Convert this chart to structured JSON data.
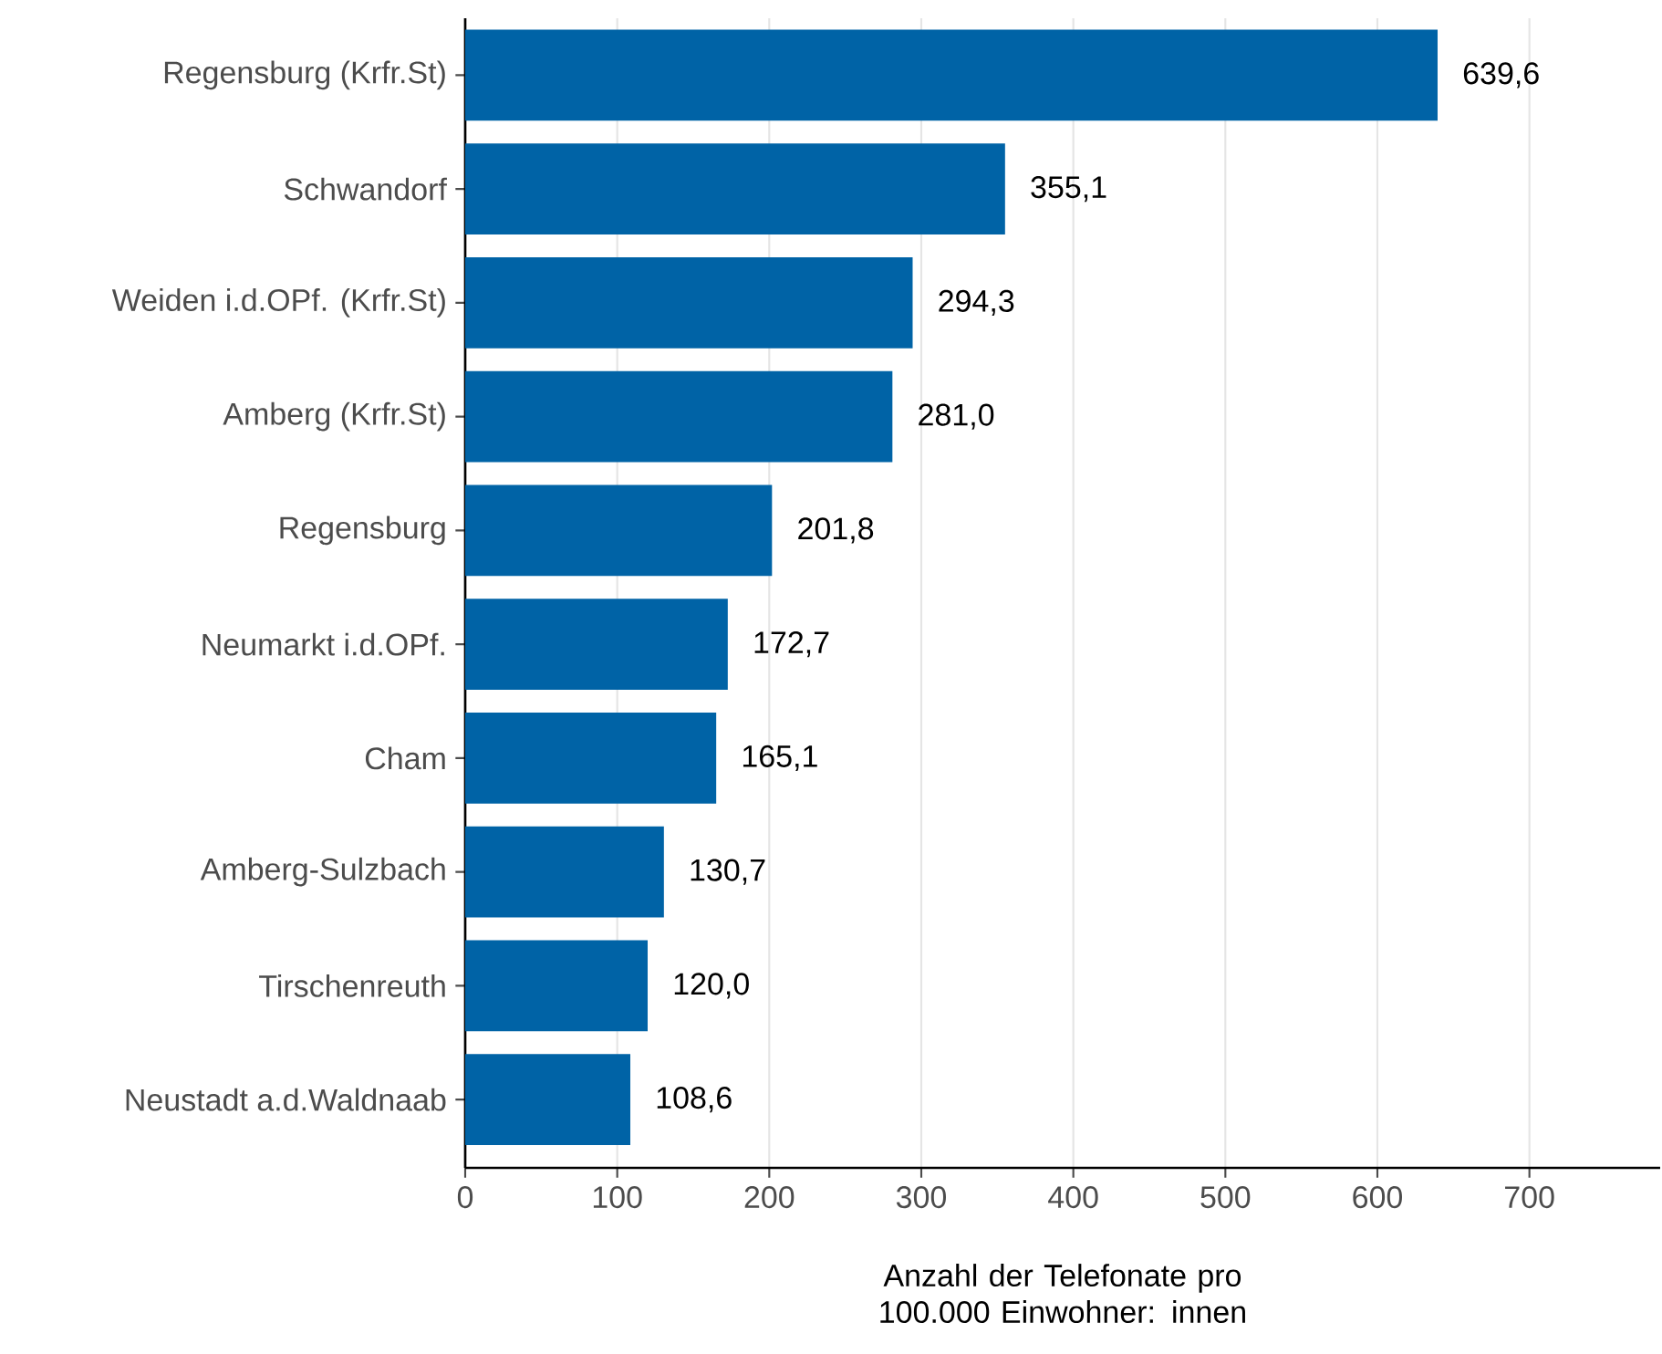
{
  "chart_data": {
    "type": "bar",
    "orientation": "horizontal",
    "categories": [
      "Regensburg (Krfr.St)",
      "Schwandorf",
      "Weiden i.d.OPf. (Krfr.St)",
      "Amberg (Krfr.St)",
      "Regensburg",
      "Neumarkt i.d.OPf.",
      "Cham",
      "Amberg-Sulzbach",
      "Tirschenreuth",
      "Neustadt a.d.Waldnaab"
    ],
    "values": [
      639.6,
      355.1,
      294.3,
      281.0,
      201.8,
      172.7,
      165.1,
      130.7,
      120.0,
      108.6
    ],
    "value_labels": [
      "639,6",
      "355,1",
      "294,3",
      "281,0",
      "201,8",
      "172,7",
      "165,1",
      "130,7",
      "120,0",
      "108,6"
    ],
    "color": "#0063a6",
    "xlim": [
      0,
      786
    ],
    "xticks": [
      0,
      100,
      200,
      300,
      400,
      500,
      600,
      700
    ],
    "xlabel": "Anzahl der Telefonate pro 100.000 Einwohner: innen",
    "grid": "x"
  }
}
